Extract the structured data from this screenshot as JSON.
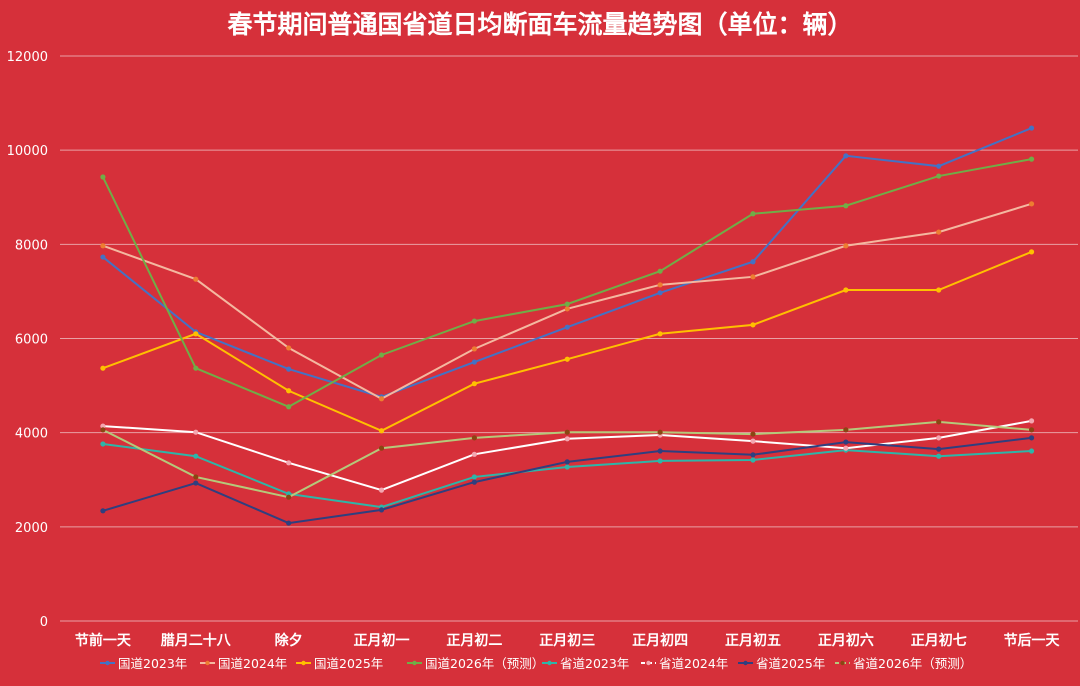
{
  "chart_data": {
    "type": "line",
    "title": "春节期间普通国省道日均断面车流量趋势图（单位：辆）",
    "xlabel": "",
    "ylabel": "",
    "ylim": [
      0,
      12000
    ],
    "yticks": [
      0,
      2000,
      4000,
      6000,
      8000,
      10000,
      12000
    ],
    "grid": true,
    "legend_position": "bottom",
    "categories": [
      "节前一天",
      "腊月二十八",
      "除夕",
      "正月初一",
      "正月初二",
      "正月初三",
      "正月初四",
      "正月初五",
      "正月初六",
      "正月初七",
      "节后一天"
    ],
    "series": [
      {
        "name": "国道2023年",
        "color": "#4472C4",
        "marker": "#4472C4",
        "dash": false,
        "values": [
          7730,
          6140,
          5350,
          4760,
          5500,
          6240,
          6970,
          7630,
          9880,
          9660,
          10470
        ]
      },
      {
        "name": "国道2024年",
        "color": "#F4B8A0",
        "marker": "#ED7D31",
        "dash": false,
        "values": [
          7970,
          7260,
          5800,
          4720,
          5780,
          6630,
          7140,
          7310,
          7970,
          8260,
          8860
        ]
      },
      {
        "name": "国道2025年",
        "color": "#FFC000",
        "marker": "#FFC000",
        "dash": false,
        "values": [
          5370,
          6100,
          4890,
          4040,
          5040,
          5560,
          6100,
          6290,
          7030,
          7030,
          7840
        ]
      },
      {
        "name": "国道2026年（预测）",
        "color": "#70AD47",
        "marker": "#70AD47",
        "dash": false,
        "values": [
          9430,
          5370,
          4550,
          5650,
          6370,
          6730,
          7430,
          8650,
          8820,
          9450,
          9810
        ]
      },
      {
        "name": "省道2023年",
        "color": "#2EB5A8",
        "marker": "#2EB5A8",
        "dash": false,
        "values": [
          3760,
          3500,
          2700,
          2420,
          3060,
          3270,
          3400,
          3420,
          3630,
          3500,
          3610
        ]
      },
      {
        "name": "省道2024年",
        "color": "#FFFFFF",
        "marker": "#F4A6B0",
        "dash": false,
        "values": [
          4140,
          4010,
          3360,
          2780,
          3540,
          3870,
          3950,
          3820,
          3670,
          3890,
          4250
        ]
      },
      {
        "name": "省道2025年",
        "color": "#2F3F7F",
        "marker": "#2F3F7F",
        "dash": false,
        "values": [
          2340,
          2930,
          2080,
          2360,
          2950,
          3380,
          3610,
          3530,
          3800,
          3650,
          3890
        ]
      },
      {
        "name": "省道2026年（预测）",
        "color": "#B5C97A",
        "marker": "#8B4513",
        "dash": false,
        "values": [
          4060,
          3060,
          2630,
          3670,
          3890,
          4010,
          4010,
          3970,
          4060,
          4230,
          4060
        ]
      }
    ]
  }
}
